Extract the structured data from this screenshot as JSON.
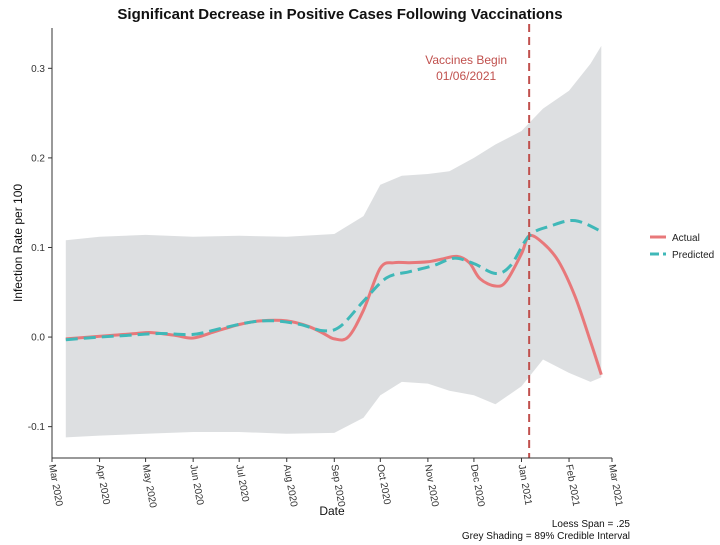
{
  "chart_data": {
    "type": "line",
    "title": "Significant Decrease in Positive Cases Following Vaccinations",
    "xlabel": "Date",
    "ylabel": "Infection Rate per 100",
    "x_ticks": [
      "Mar 2020",
      "Apr 2020",
      "May 2020",
      "Jun 2020",
      "Jul 2020",
      "Aug 2020",
      "Sep 2020",
      "Oct 2020",
      "Nov 2020",
      "Dec 2020",
      "Jan 2021",
      "Feb 2021",
      "Mar 2021"
    ],
    "y_ticks": [
      "-0.1",
      "0.0",
      "0.1",
      "0.2",
      "0.3"
    ],
    "xlim": [
      "2020-03-01",
      "2021-03-01"
    ],
    "ylim": [
      -0.135,
      0.345
    ],
    "grid": false,
    "legend_position": "right",
    "series": [
      {
        "name": "Actual",
        "color": "#e8787a",
        "style": "solid",
        "x": [
          "2020-03-10",
          "2020-03-25",
          "2020-04-10",
          "2020-04-25",
          "2020-05-05",
          "2020-05-20",
          "2020-06-01",
          "2020-06-15",
          "2020-07-01",
          "2020-07-15",
          "2020-08-01",
          "2020-08-15",
          "2020-08-25",
          "2020-09-01",
          "2020-09-10",
          "2020-09-20",
          "2020-10-01",
          "2020-10-10",
          "2020-10-20",
          "2020-11-01",
          "2020-11-10",
          "2020-11-20",
          "2020-11-28",
          "2020-12-05",
          "2020-12-15",
          "2020-12-22",
          "2021-01-01",
          "2021-01-06",
          "2021-01-15",
          "2021-01-25",
          "2021-02-05",
          "2021-02-15",
          "2021-02-22"
        ],
        "values": [
          -0.002,
          0.0,
          0.002,
          0.004,
          0.005,
          0.002,
          -0.001,
          0.006,
          0.014,
          0.018,
          0.018,
          0.012,
          0.004,
          -0.002,
          0.0,
          0.03,
          0.077,
          0.083,
          0.083,
          0.084,
          0.087,
          0.09,
          0.083,
          0.065,
          0.057,
          0.062,
          0.093,
          0.113,
          0.105,
          0.085,
          0.045,
          -0.005,
          -0.042
        ]
      },
      {
        "name": "Predicted",
        "color": "#3fb8b8",
        "style": "dashed",
        "x": [
          "2020-03-10",
          "2020-04-01",
          "2020-04-20",
          "2020-05-10",
          "2020-06-01",
          "2020-06-20",
          "2020-07-10",
          "2020-07-25",
          "2020-08-10",
          "2020-08-25",
          "2020-09-05",
          "2020-09-20",
          "2020-10-05",
          "2020-10-20",
          "2020-11-05",
          "2020-11-18",
          "2020-12-01",
          "2020-12-15",
          "2020-12-25",
          "2021-01-06",
          "2021-01-20",
          "2021-02-05",
          "2021-02-22"
        ],
        "values": [
          -0.003,
          0.0,
          0.002,
          0.004,
          0.003,
          0.01,
          0.017,
          0.018,
          0.014,
          0.007,
          0.012,
          0.04,
          0.066,
          0.073,
          0.08,
          0.088,
          0.082,
          0.071,
          0.08,
          0.113,
          0.124,
          0.13,
          0.118
        ]
      }
    ],
    "credible_interval": {
      "x": [
        "2020-03-10",
        "2020-04-01",
        "2020-05-01",
        "2020-06-01",
        "2020-07-01",
        "2020-08-01",
        "2020-09-01",
        "2020-09-20",
        "2020-10-01",
        "2020-10-15",
        "2020-11-01",
        "2020-11-15",
        "2020-12-01",
        "2020-12-15",
        "2021-01-01",
        "2021-01-15",
        "2021-02-01",
        "2021-02-15",
        "2021-02-22"
      ],
      "upper": [
        0.108,
        0.112,
        0.114,
        0.112,
        0.113,
        0.112,
        0.115,
        0.135,
        0.17,
        0.18,
        0.182,
        0.185,
        0.2,
        0.215,
        0.23,
        0.255,
        0.275,
        0.305,
        0.325
      ],
      "lower": [
        -0.112,
        -0.11,
        -0.108,
        -0.106,
        -0.106,
        -0.108,
        -0.107,
        -0.09,
        -0.065,
        -0.05,
        -0.052,
        -0.06,
        -0.065,
        -0.075,
        -0.055,
        -0.025,
        -0.04,
        -0.05,
        -0.045
      ]
    },
    "vline": {
      "x": "2021-01-06",
      "color": "#c0504d",
      "label_line1": "Vaccines Begin",
      "label_line2": "01/06/2021"
    },
    "caption_line1": "Loess Span = .25",
    "caption_line2": "Grey Shading = 89% Credible Interval"
  }
}
